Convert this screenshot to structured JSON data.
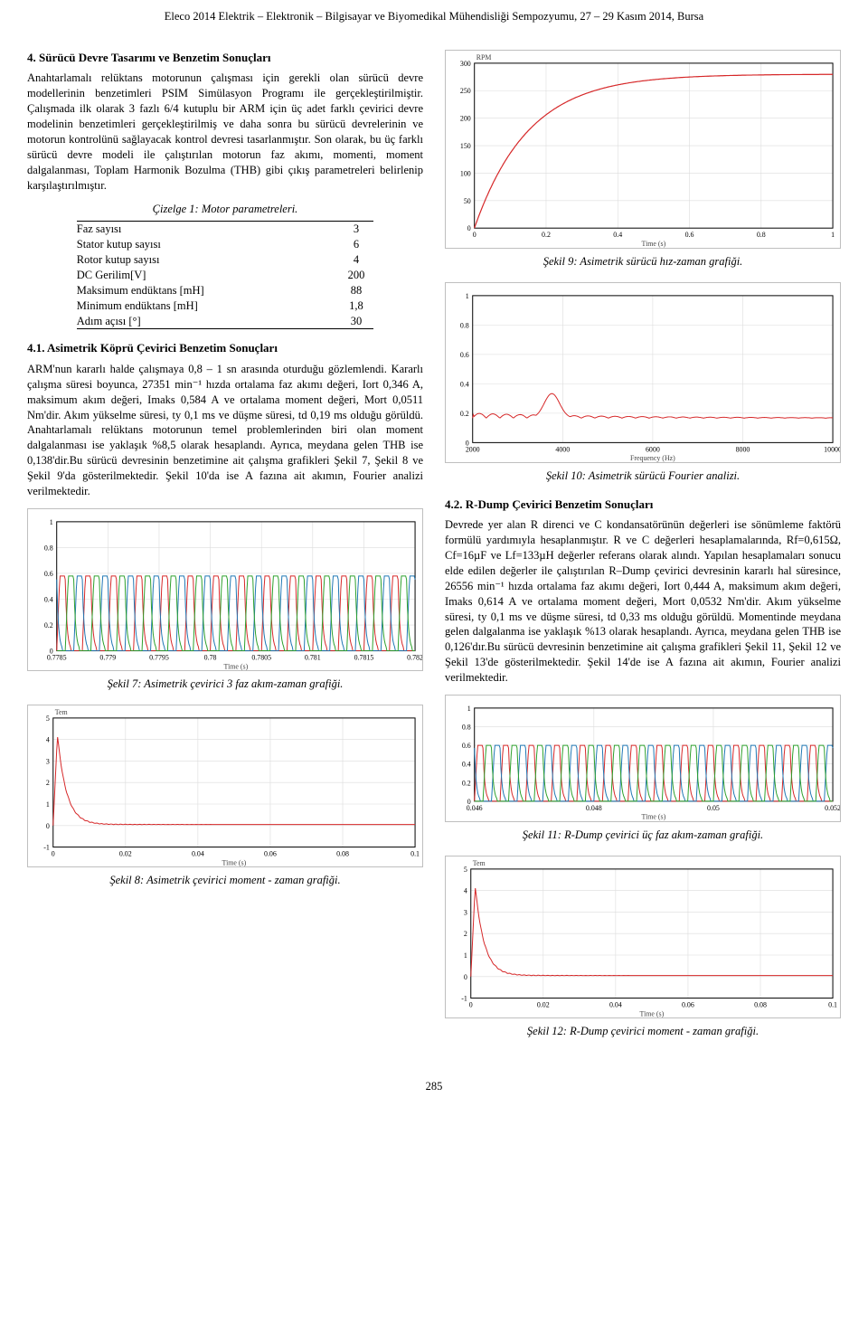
{
  "header": "Eleco 2014 Elektrik – Elektronik – Bilgisayar ve Biyomedikal Mühendisliği Sempozyumu, 27 – 29 Kasım 2014, Bursa",
  "page_number": "285",
  "left": {
    "section_title": "4.  Sürücü Devre Tasarımı ve Benzetim Sonuçları",
    "para1": "Anahtarlamalı relüktans motorunun çalışması için gerekli olan sürücü devre modellerinin benzetimleri PSIM Simülasyon Programı ile gerçekleştirilmiştir. Çalışmada ilk olarak 3 fazlı 6/4 kutuplu bir ARM için üç adet farklı çevirici devre modelinin benzetimleri gerçekleştirilmiş ve daha sonra bu sürücü devrelerinin ve motorun kontrolünü sağlayacak kontrol devresi tasarlanmıştır. Son olarak, bu üç farklı sürücü devre modeli ile çalıştırılan motorun faz akımı, momenti, moment dalgalanması, Toplam Harmonik Bozulma (THB) gibi çıkış parametreleri belirlenip karşılaştırılmıştır.",
    "table_caption": "Çizelge 1: Motor parametreleri.",
    "table_rows": [
      [
        "Faz sayısı",
        "3"
      ],
      [
        "Stator kutup sayısı",
        "6"
      ],
      [
        "Rotor kutup sayısı",
        "4"
      ],
      [
        "DC Gerilim[V]",
        "200"
      ],
      [
        "Maksimum endüktans [mH]",
        "88"
      ],
      [
        "Minimum endüktans [mH]",
        "1,8"
      ],
      [
        "Adım açısı [°]",
        "30"
      ]
    ],
    "subsection_title": "4.1.  Asimetrik Köprü Çevirici Benzetim Sonuçları",
    "para2": "ARM'nun kararlı halde çalışmaya 0,8 – 1 sn arasında oturduğu gözlemlendi. Kararlı çalışma süresi boyunca, 27351 min⁻¹ hızda ortalama faz akımı değeri, Iort 0,346 A, maksimum akım değeri, Imaks 0,584 A ve ortalama moment değeri, Mort 0,0511 Nm'dir. Akım yükselme süresi, ty 0,1 ms ve düşme süresi, td 0,19 ms olduğu görüldü. Anahtarlamalı relüktans motorunun temel problemlerinden biri olan moment dalgalanması ise yaklaşık %8,5 olarak hesaplandı. Ayrıca, meydana gelen THB ise 0,138'dir.Bu sürücü devresinin benzetimine ait çalışma grafikleri Şekil 7, Şekil 8 ve Şekil 9'da gösterilmektedir. Şekil 10'da ise A fazına ait akımın, Fourier analizi verilmektedir.",
    "fig7_caption": "Şekil 7: Asimetrik çevirici 3 faz akım-zaman grafiği.",
    "fig8_caption": "Şekil 8: Asimetrik çevirici moment - zaman grafiği."
  },
  "right": {
    "fig9_caption": "Şekil 9: Asimetrik sürücü hız-zaman grafiği.",
    "fig10_caption": "Şekil 10: Asimetrik sürücü Fourier analizi.",
    "subsection_title": "4.2.  R-Dump Çevirici Benzetim Sonuçları",
    "para1": "Devrede yer alan R direnci ve C kondansatörünün değerleri ise sönümleme faktörü formülü yardımıyla hesaplanmıştır. R ve C değerleri hesaplamalarında, Rf=0,615Ω, Cf=16µF ve Lf=133µH değerler referans olarak alındı. Yapılan hesaplamaları sonucu elde edilen değerler ile çalıştırılan R–Dump çevirici devresinin kararlı hal süresince, 26556 min⁻¹ hızda ortalama faz akımı değeri, Iort 0,444 A, maksimum akım değeri, Imaks 0,614 A ve ortalama moment değeri, Mort 0,0532 Nm'dir. Akım yükselme süresi, ty 0,1 ms ve düşme süresi, td 0,33 ms olduğu görüldü. Momentinde meydana gelen dalgalanma ise yaklaşık %13 olarak hesaplandı. Ayrıca, meydana gelen THB ise 0,126'dır.Bu sürücü devresinin benzetimine ait çalışma grafikleri Şekil 11, Şekil 12 ve Şekil 13'de gösterilmektedir. Şekil 14'de ise A fazına ait akımın, Fourier analizi verilmektedir.",
    "fig11_caption": "Şekil 11: R-Dump çevirici üç faz akım-zaman grafiği.",
    "fig12_caption": "Şekil 12: R-Dump çevirici moment - zaman grafiği."
  },
  "charts": {
    "fig7": {
      "type": "line",
      "n_phases": 3,
      "n_periods": 14,
      "amplitude": 0.58,
      "xlim": [
        0.7785,
        0.783
      ],
      "xticks": [
        "0.7785",
        "0.779",
        "0.7795",
        "0.78",
        "0.7805",
        "0.781",
        "0.7815",
        "0.782"
      ],
      "ylim": [
        0,
        1.0
      ],
      "yticks": [
        "0",
        "0.2",
        "0.4",
        "0.6",
        "0.8",
        "1"
      ],
      "xlabel": "Time (s)",
      "colors": [
        "#d62728",
        "#1f77b4",
        "#2ca02c"
      ],
      "grid_color": "#dcdcdc",
      "axis_color": "#000"
    },
    "fig8": {
      "type": "line-decay",
      "peak": 4.2,
      "settle": 0.05,
      "xlim": [
        0,
        0.1
      ],
      "xticks": [
        "0",
        "0.02",
        "0.04",
        "0.06",
        "0.08",
        "0.1"
      ],
      "ylim": [
        -1,
        5
      ],
      "yticks": [
        "-1",
        "0",
        "1",
        "2",
        "3",
        "4",
        "5"
      ],
      "xlabel": "Time (s)",
      "title_top": "Tem",
      "color": "#d62728",
      "grid_color": "#dcdcdc",
      "axis_color": "#000"
    },
    "fig9": {
      "type": "line-ramp",
      "final": 280,
      "tau": 0.15,
      "xlim": [
        0,
        1
      ],
      "xticks": [
        "0",
        "0.2",
        "0.4",
        "0.6",
        "0.8",
        "1"
      ],
      "ylim": [
        0,
        300
      ],
      "yticks": [
        "0",
        "50",
        "100",
        "150",
        "200",
        "250",
        "300"
      ],
      "xlabel": "Time (s)",
      "title_top": "RPM",
      "color": "#d62728",
      "grid_color": "#dcdcdc",
      "axis_color": "#000"
    },
    "fig10": {
      "type": "spectrum",
      "peak_f": 2200,
      "peak_v": 0.2,
      "xlim": [
        0,
        10000
      ],
      "xticks": [
        "2000",
        "4000",
        "6000",
        "8000",
        "10000"
      ],
      "ylim": [
        -0.2,
        1.0
      ],
      "yticks": [
        "0",
        "0.2",
        "0.4",
        "0.6",
        "0.8",
        "1"
      ],
      "xlabel": "Frequency (Hz)",
      "color": "#d62728",
      "grid_color": "#dcdcdc",
      "axis_color": "#000"
    },
    "fig11": {
      "type": "line",
      "n_phases": 3,
      "n_periods": 14,
      "amplitude": 0.6,
      "xlim": [
        0.046,
        0.052
      ],
      "xticks": [
        "0.046",
        "0.048",
        "0.05",
        "0.052"
      ],
      "ylim": [
        0,
        1.0
      ],
      "yticks": [
        "0",
        "0.2",
        "0.4",
        "0.6",
        "0.8",
        "1"
      ],
      "xlabel": "Time (s)",
      "colors": [
        "#d62728",
        "#1f77b4",
        "#2ca02c"
      ],
      "grid_color": "#dcdcdc",
      "axis_color": "#000"
    },
    "fig12": {
      "type": "line-decay",
      "peak": 4.2,
      "settle": 0.05,
      "xlim": [
        0,
        0.1
      ],
      "xticks": [
        "0",
        "0.02",
        "0.04",
        "0.06",
        "0.08",
        "0.1"
      ],
      "ylim": [
        -1,
        5
      ],
      "yticks": [
        "-1",
        "0",
        "1",
        "2",
        "3",
        "4",
        "5"
      ],
      "xlabel": "Time (s)",
      "title_top": "Tem",
      "color": "#d62728",
      "grid_color": "#dcdcdc",
      "axis_color": "#000"
    }
  }
}
